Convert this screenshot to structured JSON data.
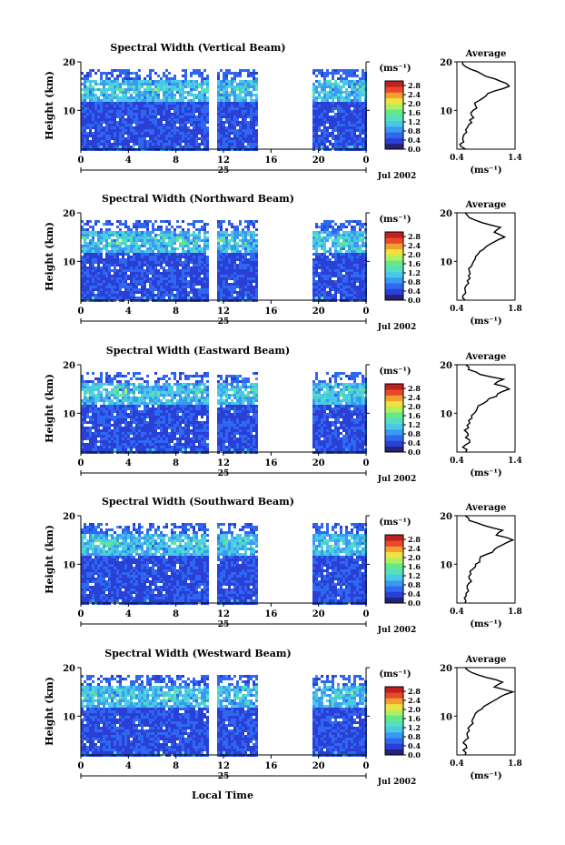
{
  "page": {
    "bottom_xlabel": "Local Time",
    "date_label": "Jul 2002",
    "day_label": "25",
    "time_ticks": [
      "0",
      "4",
      "8",
      "12",
      "16",
      "20",
      "0"
    ],
    "height_ticks": [
      "20",
      "10"
    ],
    "colorbar_unit": "(ms⁻¹)",
    "colorbar_ticks": [
      "2.8",
      "2.4",
      "2.0",
      "1.6",
      "1.2",
      "0.8",
      "0.4",
      "0.0"
    ],
    "avg_title": "Average",
    "avg_xlabel": "(ms⁻¹)",
    "avg_height_ticks": [
      "20",
      "10"
    ],
    "colors": {
      "scale": [
        "#23237a",
        "#2a3fd6",
        "#2f68f0",
        "#3a9af0",
        "#49c8e8",
        "#52e0c0",
        "#66e88a",
        "#b0f060",
        "#f0e040",
        "#f0a030",
        "#e84a28",
        "#c02020"
      ]
    }
  },
  "chart_data": [
    {
      "type": "heatmap",
      "title": "Spectral Width (Vertical Beam)",
      "ylabel": "Height (km)",
      "xlabel": "Local Time",
      "xlim": [
        0,
        24
      ],
      "ylim": [
        2,
        20
      ],
      "x_ticks": [
        0,
        4,
        8,
        12,
        16,
        20,
        24
      ],
      "y_ticks": [
        10,
        20
      ],
      "colorbar": {
        "label": "(ms⁻¹)",
        "range": [
          0.0,
          3.0
        ],
        "ticks": [
          0.0,
          0.4,
          0.8,
          1.2,
          1.6,
          2.0,
          2.4,
          2.8
        ]
      },
      "data_gaps_hours": [
        [
          10.7,
          11.3
        ],
        [
          14.7,
          19.3
        ]
      ],
      "average_profile": {
        "title": "Average",
        "xlabel": "(ms⁻¹)",
        "xlim": [
          0.4,
          1.4
        ],
        "x_ticks": [
          "0.4",
          "1.4"
        ],
        "height_km": [
          2,
          3,
          4,
          5,
          6,
          7,
          8,
          9,
          10,
          11,
          12,
          13,
          14,
          15,
          16,
          17,
          18,
          19,
          20
        ],
        "width_ms": [
          0.55,
          0.45,
          0.5,
          0.52,
          0.55,
          0.6,
          0.62,
          0.65,
          0.68,
          0.72,
          0.78,
          0.9,
          1.05,
          1.3,
          1.15,
          0.9,
          0.75,
          0.55,
          0.5
        ]
      }
    },
    {
      "type": "heatmap",
      "title": "Spectral Width (Northward Beam)",
      "ylabel": "Height (km)",
      "xlabel": "Local Time",
      "xlim": [
        0,
        24
      ],
      "ylim": [
        2,
        20
      ],
      "x_ticks": [
        0,
        4,
        8,
        12,
        16,
        20,
        24
      ],
      "y_ticks": [
        10,
        20
      ],
      "colorbar": {
        "label": "(ms⁻¹)",
        "range": [
          0.0,
          3.0
        ],
        "ticks": [
          0.0,
          0.4,
          0.8,
          1.2,
          1.6,
          2.0,
          2.4,
          2.8
        ]
      },
      "data_gaps_hours": [
        [
          10.7,
          11.3
        ],
        [
          14.7,
          19.3
        ]
      ],
      "average_profile": {
        "title": "Average",
        "xlabel": "(ms⁻¹)",
        "xlim": [
          0.4,
          1.8
        ],
        "x_ticks": [
          "0.4",
          "1.8"
        ],
        "height_km": [
          2,
          3,
          4,
          5,
          6,
          7,
          8,
          9,
          10,
          11,
          12,
          13,
          14,
          15,
          16,
          17,
          18,
          19,
          20
        ],
        "width_ms": [
          0.6,
          0.55,
          0.6,
          0.62,
          0.65,
          0.68,
          0.7,
          0.75,
          0.8,
          0.85,
          0.95,
          1.1,
          1.3,
          1.55,
          1.3,
          1.45,
          1.0,
          0.7,
          0.6
        ]
      }
    },
    {
      "type": "heatmap",
      "title": "Spectral Width (Eastward Beam)",
      "ylabel": "Height (km)",
      "xlabel": "Local Time",
      "xlim": [
        0,
        24
      ],
      "ylim": [
        2,
        20
      ],
      "x_ticks": [
        0,
        4,
        8,
        12,
        16,
        20,
        24
      ],
      "y_ticks": [
        10,
        20
      ],
      "colorbar": {
        "label": "(ms⁻¹)",
        "range": [
          0.0,
          3.0
        ],
        "ticks": [
          0.0,
          0.4,
          0.8,
          1.2,
          1.6,
          2.0,
          2.4,
          2.8
        ]
      },
      "data_gaps_hours": [
        [
          10.7,
          11.3
        ],
        [
          14.7,
          19.3
        ]
      ],
      "average_profile": {
        "title": "Average",
        "xlabel": "(ms⁻¹)",
        "xlim": [
          0.4,
          1.4
        ],
        "x_ticks": [
          "0.4",
          "1.4"
        ],
        "height_km": [
          2,
          3,
          4,
          5,
          6,
          7,
          8,
          9,
          10,
          11,
          12,
          13,
          14,
          15,
          16,
          17,
          18,
          19,
          20
        ],
        "width_ms": [
          0.55,
          0.5,
          0.62,
          0.55,
          0.58,
          0.6,
          0.62,
          0.66,
          0.7,
          0.75,
          0.85,
          0.95,
          1.1,
          1.3,
          1.05,
          1.2,
          0.8,
          0.6,
          0.55
        ]
      }
    },
    {
      "type": "heatmap",
      "title": "Spectral Width (Southward Beam)",
      "ylabel": "Height (km)",
      "xlabel": "Local Time",
      "xlim": [
        0,
        24
      ],
      "ylim": [
        2,
        20
      ],
      "x_ticks": [
        0,
        4,
        8,
        12,
        16,
        20,
        24
      ],
      "y_ticks": [
        10,
        20
      ],
      "colorbar": {
        "label": "(ms⁻¹)",
        "range": [
          0.0,
          3.0
        ],
        "ticks": [
          0.0,
          0.4,
          0.8,
          1.2,
          1.6,
          2.0,
          2.4,
          2.8
        ]
      },
      "data_gaps_hours": [
        [
          10.7,
          11.3
        ],
        [
          14.7,
          19.3
        ]
      ],
      "average_profile": {
        "title": "Average",
        "xlabel": "(ms⁻¹)",
        "xlim": [
          0.4,
          1.8
        ],
        "x_ticks": [
          "0.4",
          "1.8"
        ],
        "height_km": [
          2,
          3,
          4,
          5,
          6,
          7,
          8,
          9,
          10,
          11,
          12,
          13,
          14,
          15,
          16,
          17,
          18,
          19,
          20
        ],
        "width_ms": [
          0.6,
          0.58,
          0.62,
          0.65,
          0.68,
          0.7,
          0.74,
          0.78,
          0.85,
          0.95,
          1.1,
          1.3,
          1.5,
          1.75,
          1.35,
          1.5,
          1.05,
          0.7,
          0.6
        ]
      }
    },
    {
      "type": "heatmap",
      "title": "Spectral Width (Westward Beam)",
      "ylabel": "Height (km)",
      "xlabel": "Local Time",
      "xlim": [
        0,
        24
      ],
      "ylim": [
        2,
        20
      ],
      "x_ticks": [
        0,
        4,
        8,
        12,
        16,
        20,
        24
      ],
      "y_ticks": [
        10,
        20
      ],
      "colorbar": {
        "label": "(ms⁻¹)",
        "range": [
          0.0,
          3.0
        ],
        "ticks": [
          0.0,
          0.4,
          0.8,
          1.2,
          1.6,
          2.0,
          2.4,
          2.8
        ]
      },
      "data_gaps_hours": [
        [
          10.7,
          11.3
        ],
        [
          14.7,
          19.3
        ]
      ],
      "average_profile": {
        "title": "Average",
        "xlabel": "(ms⁻¹)",
        "xlim": [
          0.4,
          1.8
        ],
        "x_ticks": [
          "0.4",
          "1.8"
        ],
        "height_km": [
          2,
          3,
          4,
          5,
          6,
          7,
          8,
          9,
          10,
          11,
          12,
          13,
          14,
          15,
          16,
          17,
          18,
          19,
          20
        ],
        "width_ms": [
          0.6,
          0.55,
          0.62,
          0.6,
          0.65,
          0.7,
          0.72,
          0.76,
          0.82,
          0.9,
          1.05,
          1.25,
          1.45,
          1.75,
          1.3,
          1.5,
          1.1,
          0.75,
          0.6
        ]
      }
    }
  ]
}
